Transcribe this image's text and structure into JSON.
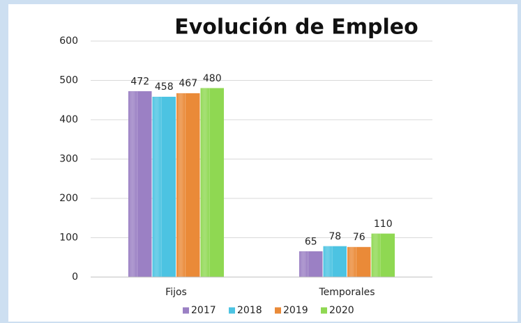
{
  "chart_data": {
    "type": "bar",
    "title": "Evolución de Empleo",
    "categories": [
      "Fijos",
      "Temporales"
    ],
    "series": [
      {
        "name": "2017",
        "color": "#9b80c4",
        "values": [
          472,
          65
        ]
      },
      {
        "name": "2018",
        "color": "#4cc3e2",
        "values": [
          458,
          78
        ]
      },
      {
        "name": "2019",
        "color": "#ea8a38",
        "values": [
          467,
          76
        ]
      },
      {
        "name": "2020",
        "color": "#8fd852",
        "values": [
          480,
          110
        ]
      }
    ],
    "ylim": [
      0,
      600
    ],
    "yticks": [
      0,
      100,
      200,
      300,
      400,
      500,
      600
    ],
    "grid": true,
    "legend": "bottom"
  }
}
